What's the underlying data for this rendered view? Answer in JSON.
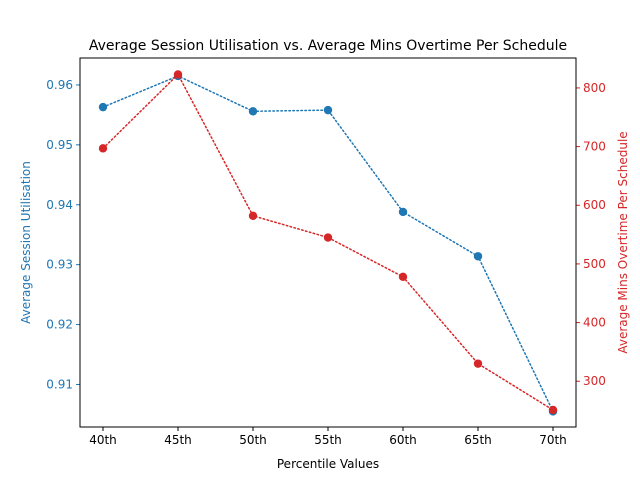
{
  "chart_data": {
    "type": "line",
    "title": "Average Session Utilisation vs. Average Mins Overtime Per Schedule",
    "xlabel": "Percentile Values",
    "categories": [
      "40th",
      "45th",
      "50th",
      "55th",
      "60th",
      "65th",
      "70th"
    ],
    "series": [
      {
        "name": "Average Session Utilisation",
        "axis": "left",
        "color": "#1f77b4",
        "line_style": "dotted",
        "marker": "circle",
        "values": [
          0.9563,
          0.9615,
          0.9556,
          0.9558,
          0.9388,
          0.9314,
          0.9055
        ]
      },
      {
        "name": "Average Mins Overtime Per Schedule",
        "axis": "right",
        "color": "#d62728",
        "line_style": "dotted",
        "marker": "circle",
        "values": [
          697,
          823,
          582,
          545,
          478,
          330,
          251
        ]
      }
    ],
    "y_left": {
      "label": "Average Session Utilisation",
      "color": "#1f77b4",
      "ylim": [
        0.9029,
        0.9645
      ],
      "ticks": [
        0.91,
        0.92,
        0.93,
        0.94,
        0.95,
        0.96
      ],
      "tick_labels": [
        "0.91",
        "0.92",
        "0.93",
        "0.94",
        "0.95",
        "0.96"
      ]
    },
    "y_right": {
      "label": "Average Mins Overtime Per Schedule",
      "color": "#d62728",
      "ylim": [
        222,
        851
      ],
      "ticks": [
        300,
        400,
        500,
        600,
        700,
        800
      ],
      "tick_labels": [
        "300",
        "400",
        "500",
        "600",
        "700",
        "800"
      ]
    },
    "grid": false,
    "legend": "none"
  }
}
